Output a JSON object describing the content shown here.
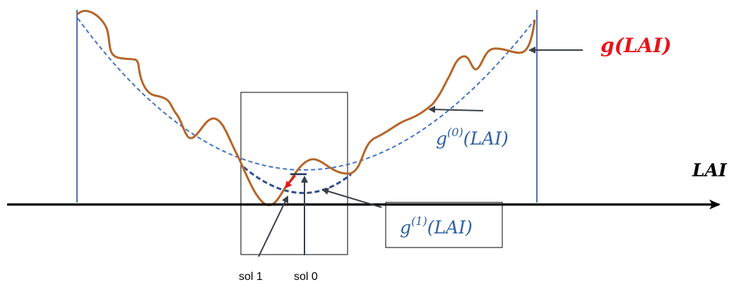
{
  "labels": {
    "g_main": "g(LAI)",
    "g0_base": "g",
    "g0_sup": "(0)",
    "g0_arg": "(LAI)",
    "g1_base": "g",
    "g1_sup": "(1)",
    "g1_arg": "(LAI)",
    "axis": "LAI",
    "sol1": "sol 1",
    "sol0": "sol 0"
  },
  "colors": {
    "g_curve": "#b5652a",
    "g0_curve": "#4472c4",
    "g1_curve": "#2f4f8f",
    "g_label": "#e8141b",
    "g0_label": "#2e5fa3",
    "g1_label": "#2e5fa3",
    "axis": "#000000",
    "pointer_arrow": "#3a3f47",
    "red_arrow": "#e8141b"
  }
}
